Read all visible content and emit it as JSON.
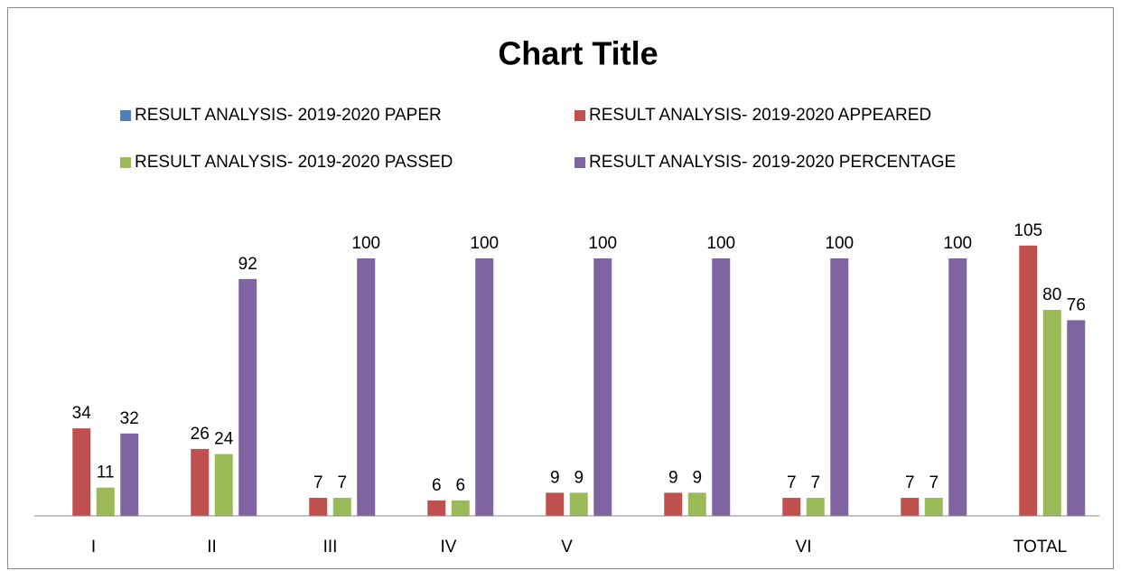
{
  "chart_data": {
    "type": "bar",
    "title": "Chart Title",
    "categories": [
      "I",
      "II",
      "III",
      "IV",
      "V",
      null,
      "VI",
      null,
      "TOTAL"
    ],
    "series": [
      {
        "name": "RESULT ANALYSIS- 2019-2020 PAPER",
        "color": "#4f81bd",
        "values": [
          null,
          null,
          null,
          null,
          null,
          null,
          null,
          null,
          null
        ]
      },
      {
        "name": "RESULT ANALYSIS- 2019-2020 APPEARED",
        "color": "#c0504d",
        "values": [
          34,
          26,
          7,
          6,
          9,
          9,
          7,
          7,
          105
        ]
      },
      {
        "name": "RESULT ANALYSIS- 2019-2020 PASSED",
        "color": "#9bbb59",
        "values": [
          11,
          24,
          7,
          6,
          9,
          9,
          7,
          7,
          80
        ]
      },
      {
        "name": "RESULT ANALYSIS- 2019-2020 PERCENTAGE",
        "color": "#8064a2",
        "values": [
          32,
          92,
          100,
          100,
          100,
          100,
          100,
          100,
          76
        ]
      }
    ],
    "ylim": [
      0,
      120
    ],
    "legend": "top"
  }
}
